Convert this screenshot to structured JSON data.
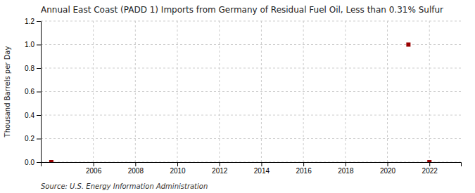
{
  "chart_data": {
    "type": "scatter",
    "title": "Annual East Coast (PADD 1) Imports from Germany of Residual Fuel Oil, Less than 0.31% Sulfur",
    "ylabel": "Thousand Barrels per Day",
    "source": "Source: U.S. Energy Information Administration",
    "x": [
      2004,
      2021,
      2022
    ],
    "values": [
      0.0,
      1.0,
      0.0
    ],
    "color": "#990000",
    "marker": "square",
    "xlim": [
      2003.5,
      2023.5
    ],
    "ylim": [
      0.0,
      1.2
    ],
    "xticks": [
      2006,
      2008,
      2010,
      2012,
      2014,
      2016,
      2018,
      2020,
      2022
    ],
    "yticks": [
      {
        "value": 0.0,
        "label": "0.0"
      },
      0.2,
      0.4,
      0.6,
      0.8,
      {
        "value": 1.0,
        "label": "1.0"
      },
      1.2
    ],
    "grid": true
  }
}
